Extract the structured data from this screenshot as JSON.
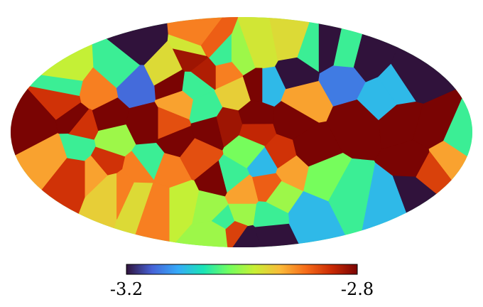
{
  "chart_data": {
    "type": "heatmap",
    "projection": "mollweide",
    "title": "",
    "colormap": "turbo",
    "colorbar": {
      "min": -3.2,
      "max": -2.8,
      "min_label": "-3.2",
      "max_label": "-2.8",
      "orientation": "horizontal",
      "placement": "bottom"
    },
    "colorbar_stops": [
      "#30123b",
      "#4662d7",
      "#36aaf9",
      "#1ae4b6",
      "#72fe5e",
      "#c8ef34",
      "#faba39",
      "#f66b19",
      "#ca2a04",
      "#7a0403"
    ],
    "regions": [
      {
        "lon": -160,
        "lat": 5,
        "value": -2.8
      },
      {
        "lon": -130,
        "lat": 8,
        "value": -2.8
      },
      {
        "lon": -105,
        "lat": 10,
        "value": -2.8
      },
      {
        "lon": -75,
        "lat": 5,
        "value": -2.8
      },
      {
        "lon": -60,
        "lat": 32,
        "value": -2.8
      },
      {
        "lon": -50,
        "lat": -5,
        "value": -2.8
      },
      {
        "lon": -25,
        "lat": 2,
        "value": -2.8
      },
      {
        "lon": -10,
        "lat": 5,
        "value": -2.82
      },
      {
        "lon": 10,
        "lat": 10,
        "value": -2.8
      },
      {
        "lon": 40,
        "lat": 8,
        "value": -2.8
      },
      {
        "lon": 55,
        "lat": -10,
        "value": -2.8
      },
      {
        "lon": 90,
        "lat": 5,
        "value": -2.8
      },
      {
        "lon": 125,
        "lat": 8,
        "value": -2.8
      },
      {
        "lon": 150,
        "lat": 2,
        "value": -2.8
      },
      {
        "lon": 140,
        "lat": -20,
        "value": -2.8
      },
      {
        "lon": -20,
        "lat": -32,
        "value": -2.8
      },
      {
        "lon": 50,
        "lat": 40,
        "value": -3.2
      },
      {
        "lon": 95,
        "lat": 55,
        "value": -3.2
      },
      {
        "lon": 125,
        "lat": 48,
        "value": -3.2
      },
      {
        "lon": 150,
        "lat": 35,
        "value": -3.2
      },
      {
        "lon": 155,
        "lat": -38,
        "value": -3.2
      },
      {
        "lon": 10,
        "lat": -78,
        "value": -3.2
      },
      {
        "lon": 45,
        "lat": -72,
        "value": -3.2
      },
      {
        "lon": -125,
        "lat": 60,
        "value": -3.2
      },
      {
        "lon": -90,
        "lat": 30,
        "value": -3.15
      },
      {
        "lon": 90,
        "lat": 35,
        "value": -3.14
      },
      {
        "lon": 20,
        "lat": 30,
        "value": -3.1
      },
      {
        "lon": 20,
        "lat": -20,
        "value": -3.1
      },
      {
        "lon": 75,
        "lat": -55,
        "value": -3.1
      },
      {
        "lon": 115,
        "lat": 22,
        "value": -3.1
      },
      {
        "lon": 130,
        "lat": 28,
        "value": -3.1
      },
      {
        "lon": 140,
        "lat": -45,
        "value": -3.1
      },
      {
        "lon": -20,
        "lat": 50,
        "value": -3.05
      },
      {
        "lon": -20,
        "lat": -60,
        "value": -3.05
      },
      {
        "lon": 30,
        "lat": -58,
        "value": -3.05
      },
      {
        "lon": 35,
        "lat": -40,
        "value": -3.0
      },
      {
        "lon": -40,
        "lat": 30,
        "value": -3.05
      },
      {
        "lon": -10,
        "lat": -30,
        "value": -3.05
      },
      {
        "lon": -150,
        "lat": 30,
        "value": -3.05
      },
      {
        "lon": 170,
        "lat": -5,
        "value": -3.05
      },
      {
        "lon": -100,
        "lat": -5,
        "value": -3.0
      },
      {
        "lon": -130,
        "lat": -10,
        "value": -3.05
      },
      {
        "lon": -115,
        "lat": 42,
        "value": -3.05
      },
      {
        "lon": 75,
        "lat": 55,
        "value": -3.05
      },
      {
        "lon": 110,
        "lat": 52,
        "value": -3.05
      },
      {
        "lon": -75,
        "lat": -20,
        "value": -3.05
      },
      {
        "lon": 0,
        "lat": 50,
        "value": -3.0
      },
      {
        "lon": -30,
        "lat": -50,
        "value": -3.0
      },
      {
        "lon": -70,
        "lat": 40,
        "value": -2.96
      },
      {
        "lon": -50,
        "lat": 55,
        "value": -2.97
      },
      {
        "lon": -115,
        "lat": -35,
        "value": -2.95
      },
      {
        "lon": -95,
        "lat": -40,
        "value": -2.96
      },
      {
        "lon": -60,
        "lat": -45,
        "value": -2.98
      },
      {
        "lon": 20,
        "lat": 55,
        "value": -2.97
      },
      {
        "lon": -160,
        "lat": 40,
        "value": -2.98
      },
      {
        "lon": 0,
        "lat": -55,
        "value": -3.0
      },
      {
        "lon": -40,
        "lat": -72,
        "value": -3.0
      },
      {
        "lon": 60,
        "lat": 60,
        "value": -2.96
      },
      {
        "lon": -30,
        "lat": 15,
        "value": -3.05
      },
      {
        "lon": 5,
        "lat": -10,
        "value": -3.02
      },
      {
        "lon": 70,
        "lat": -30,
        "value": -3.02
      },
      {
        "lon": 100,
        "lat": -40,
        "value": -3.05
      },
      {
        "lon": -5,
        "lat": 25,
        "value": -2.95
      },
      {
        "lon": 50,
        "lat": 20,
        "value": -2.92
      },
      {
        "lon": -50,
        "lat": 18,
        "value": -2.92
      },
      {
        "lon": -150,
        "lat": -15,
        "value": -2.92
      },
      {
        "lon": -120,
        "lat": -25,
        "value": -2.92
      },
      {
        "lon": 0,
        "lat": -40,
        "value": -2.92
      },
      {
        "lon": 40,
        "lat": -25,
        "value": -2.92
      },
      {
        "lon": 165,
        "lat": -15,
        "value": -2.92
      },
      {
        "lon": -85,
        "lat": -25,
        "value": -2.9
      },
      {
        "lon": -105,
        "lat": -35,
        "value": -2.9
      },
      {
        "lon": -60,
        "lat": -25,
        "value": -2.9
      },
      {
        "lon": -80,
        "lat": -45,
        "value": -2.9
      },
      {
        "lon": -120,
        "lat": 25,
        "value": -2.9
      },
      {
        "lon": -55,
        "lat": 65,
        "value": -2.9
      },
      {
        "lon": -15,
        "lat": 40,
        "value": -2.9
      },
      {
        "lon": -40,
        "lat": 60,
        "value": -2.88
      },
      {
        "lon": -48,
        "lat": 50,
        "value": -2.82
      },
      {
        "lon": -33,
        "lat": 40,
        "value": -2.83
      },
      {
        "lon": 25,
        "lat": -35,
        "value": -2.88
      },
      {
        "lon": -145,
        "lat": 20,
        "value": -2.85
      },
      {
        "lon": -125,
        "lat": 5,
        "value": -2.85
      },
      {
        "lon": -140,
        "lat": -25,
        "value": -2.85
      },
      {
        "lon": -110,
        "lat": -20,
        "value": -2.85
      },
      {
        "lon": -55,
        "lat": 5,
        "value": -2.87
      },
      {
        "lon": -35,
        "lat": -15,
        "value": -2.87
      },
      {
        "lon": 30,
        "lat": -15,
        "value": -2.85
      },
      {
        "lon": 155,
        "lat": -25,
        "value": -2.86
      },
      {
        "lon": -10,
        "lat": -70,
        "value": -2.86
      },
      {
        "lon": 10,
        "lat": 0,
        "value": -2.84
      },
      {
        "lon": 15,
        "lat": 30,
        "value": -2.8
      }
    ]
  }
}
